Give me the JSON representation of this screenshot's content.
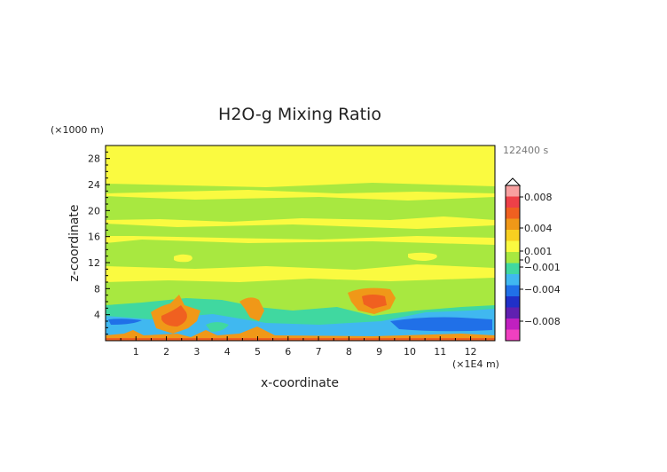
{
  "chart_data": {
    "type": "heatmap",
    "title": "H2O-g Mixing Ratio",
    "xlabel": "x-coordinate",
    "ylabel": "z-coordinate",
    "x_unit_label": "(×1E4 m)",
    "y_unit_label": "(×1000 m)",
    "time_label": "122400 s",
    "xlim": [
      0,
      12.8
    ],
    "ylim": [
      0,
      30
    ],
    "x_ticks": [
      "1",
      "2",
      "3",
      "4",
      "5",
      "6",
      "7",
      "8",
      "9",
      "10",
      "11",
      "12"
    ],
    "y_ticks": [
      "4",
      "8",
      "12",
      "16",
      "20",
      "24",
      "28"
    ],
    "colorbar": {
      "labels": [
        "0.008",
        "0.004",
        "0.001",
        "0",
        "−0.001",
        "−0.004",
        "−0.008"
      ],
      "colors": [
        "#f8a0a0",
        "#ee4048",
        "#f06020",
        "#f09818",
        "#f8d020",
        "#fafa40",
        "#a8e840",
        "#40d8a0",
        "#40b8f0",
        "#2070e8",
        "#2030c8",
        "#6020b0",
        "#c020c0",
        "#f040c0"
      ]
    }
  }
}
